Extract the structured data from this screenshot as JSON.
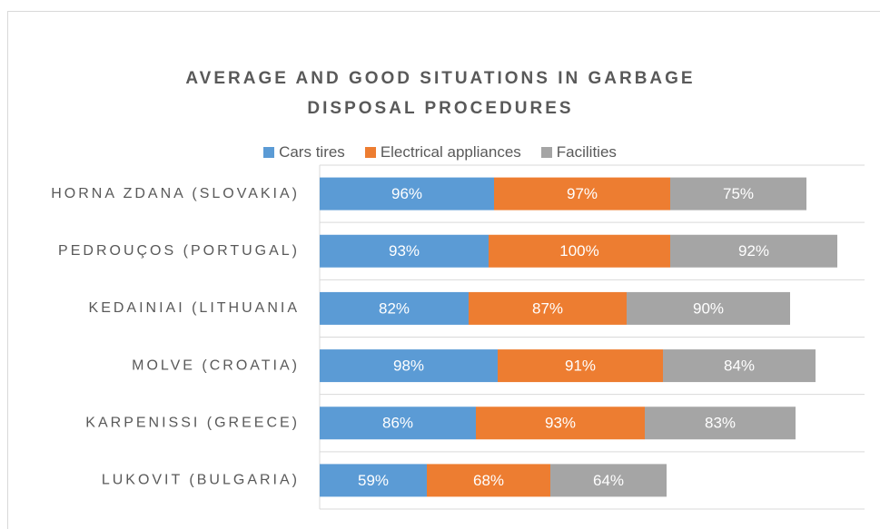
{
  "chart_data": {
    "type": "stacked_bar_horizontal",
    "title": "AVERAGE AND GOOD SITUATIONS IN GARBAGE DISPOSAL PROCEDURES",
    "categories": [
      "HORNA ZDANA (SLOVAKIA)",
      "PEDROUÇOS (PORTUGAL)",
      "KEDAINIAI (LITHUANIA",
      "MOLVE (CROATIA)",
      "KARPENISSI (GREECE)",
      "LUKOVIT (BULGARIA)"
    ],
    "series": [
      {
        "name": "Cars tires",
        "color": "#5b9bd5",
        "values": [
          96,
          93,
          82,
          98,
          86,
          59
        ],
        "value_labels": [
          "96%",
          "93%",
          "82%",
          "98%",
          "86%",
          "59%"
        ]
      },
      {
        "name": "Electrical appliances",
        "color": "#ed7d31",
        "values": [
          97,
          100,
          87,
          91,
          93,
          68
        ],
        "value_labels": [
          "97%",
          "100%",
          "87%",
          "91%",
          "93%",
          "68%"
        ]
      },
      {
        "name": "Facilities",
        "color": "#a5a5a5",
        "values": [
          75,
          92,
          90,
          84,
          83,
          64
        ],
        "value_labels": [
          "75%",
          "92%",
          "90%",
          "84%",
          "83%",
          "64%"
        ]
      }
    ],
    "xlim": [
      0,
      300
    ],
    "legend": "top",
    "grid": true
  }
}
